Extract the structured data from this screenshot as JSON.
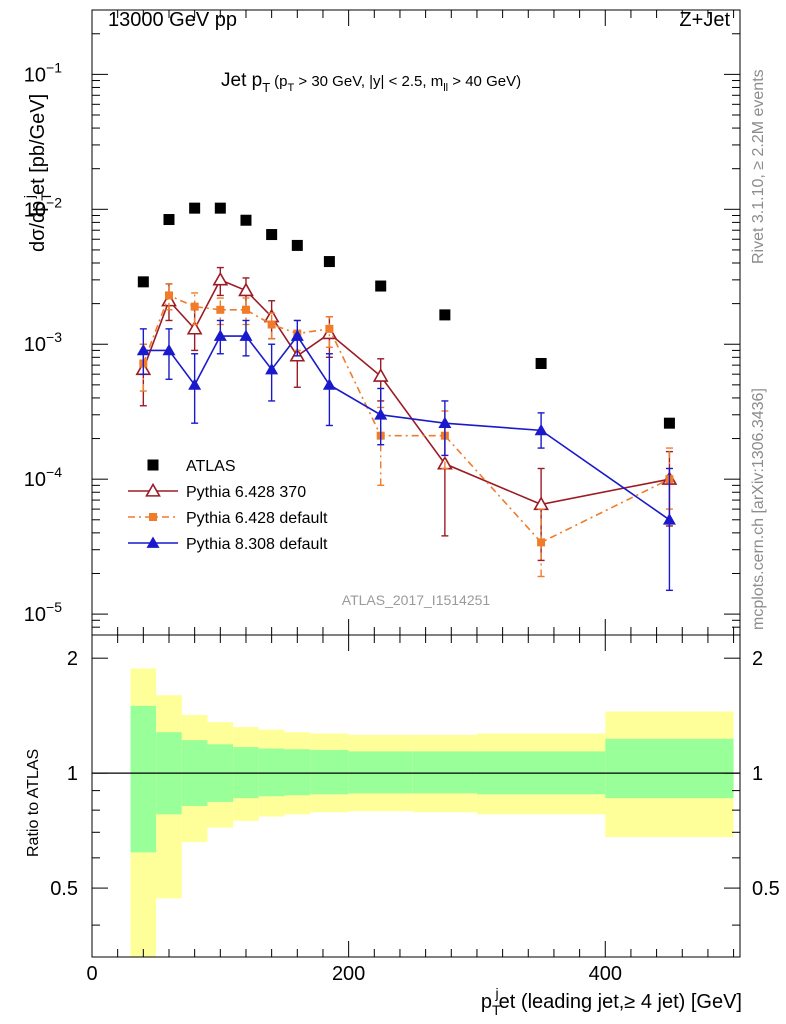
{
  "header": {
    "left": "13000 GeV pp",
    "right": "Z+Jet"
  },
  "side_labels": {
    "top": "Rivet 3.1.10, ≥ 2.2M events",
    "bottom": "mcplots.cern.ch [arXiv:1306.3436]"
  },
  "watermark": "ATLAS_2017_I1514251",
  "chart_data": [
    {
      "type": "scatter",
      "panel": "main",
      "title": {
        "main": "Jet p",
        "main_sub": "T",
        "cut_open": "(p",
        "cut_sub": "T",
        "cut_mid": " > 30 GeV, |y| < 2.5, m",
        "cut_sub2": "ll",
        "cut_close": " > 40 GeV)"
      },
      "ylabel": {
        "a": "dσ/dp",
        "sub": "T",
        "sup": "j",
        "b": "et [pb/GeV]"
      },
      "yscale": "log",
      "xlim": [
        0,
        505
      ],
      "ylim": [
        7e-06,
        0.3
      ],
      "yticks": [
        {
          "value": 0.1,
          "base": "10",
          "exp": "−1"
        },
        {
          "value": 0.01,
          "base": "10",
          "exp": "−2"
        },
        {
          "value": 0.001,
          "base": "10",
          "exp": "−3"
        },
        {
          "value": 0.0001,
          "base": "10",
          "exp": "−4"
        },
        {
          "value": 1e-05,
          "base": "10",
          "exp": "−5"
        }
      ],
      "legend_position": "bottom-left",
      "series": [
        {
          "name": "ATLAS",
          "color": "#000000",
          "marker": "square",
          "x": [
            40,
            60,
            80,
            100,
            120,
            140,
            160,
            185,
            225,
            275,
            350,
            450
          ],
          "y": [
            0.0029,
            0.0084,
            0.0102,
            0.0102,
            0.0083,
            0.0065,
            0.0054,
            0.0041,
            0.0027,
            0.00165,
            0.00072,
            0.00026
          ]
        },
        {
          "name": "Pythia 6.428 370",
          "color": "#9b1c25",
          "marker": "open-triangle",
          "dash": "",
          "x": [
            40,
            60,
            80,
            100,
            120,
            140,
            160,
            185,
            225,
            275,
            350,
            450
          ],
          "y": [
            0.00065,
            0.0021,
            0.0013,
            0.003,
            0.0025,
            0.0016,
            0.00082,
            0.0012,
            0.00058,
            0.00013,
            6.5e-05,
            0.0001
          ],
          "err_lo": [
            0.00035,
            0.0015,
            0.0009,
            0.0023,
            0.0019,
            0.0011,
            0.00048,
            0.0008,
            0.00038,
            3.8e-05,
            2.5e-05,
            4.5e-05
          ],
          "err_hi": [
            0.001,
            0.0028,
            0.0018,
            0.0037,
            0.0031,
            0.0021,
            0.0012,
            0.0016,
            0.00078,
            0.00025,
            0.00012,
            0.00016
          ]
        },
        {
          "name": "Pythia 6.428 default",
          "color": "#f07c2a",
          "marker": "square-small",
          "dash": "7,4,2,4",
          "x": [
            40,
            60,
            80,
            100,
            120,
            140,
            160,
            185,
            225,
            275,
            350,
            450
          ],
          "y": [
            0.00072,
            0.0023,
            0.0019,
            0.0018,
            0.0018,
            0.0014,
            0.0012,
            0.0013,
            0.00021,
            0.00021,
            3.4e-05,
            0.0001
          ],
          "err_lo": [
            0.00045,
            0.0018,
            0.0014,
            0.0014,
            0.0014,
            0.0011,
            0.0009,
            0.00095,
            9e-05,
            0.00012,
            1.9e-05,
            6e-05
          ],
          "err_hi": [
            0.001,
            0.0028,
            0.0024,
            0.0022,
            0.0022,
            0.0017,
            0.0015,
            0.0016,
            0.00034,
            0.00032,
            6e-05,
            0.00017
          ]
        },
        {
          "name": "Pythia 8.308 default",
          "color": "#1a1acc",
          "marker": "triangle",
          "dash": "",
          "x": [
            40,
            60,
            80,
            100,
            120,
            140,
            160,
            185,
            225,
            275,
            350,
            450
          ],
          "y": [
            0.0009,
            0.0009,
            0.0005,
            0.00115,
            0.00115,
            0.00065,
            0.00115,
            0.0005,
            0.0003,
            0.00026,
            0.00023,
            5e-05
          ],
          "err_lo": [
            0.0006,
            0.00055,
            0.00026,
            0.00085,
            0.00082,
            0.00038,
            0.00082,
            0.00025,
            0.00018,
            0.00015,
            0.00017,
            1.5e-05
          ],
          "err_hi": [
            0.0013,
            0.0013,
            0.00085,
            0.0015,
            0.0015,
            0.001,
            0.0015,
            0.00085,
            0.00047,
            0.00038,
            0.00031,
            0.00012
          ]
        }
      ]
    },
    {
      "type": "area",
      "panel": "ratio",
      "ylabel": "Ratio to ATLAS",
      "xlabel": {
        "a": "p",
        "sub": "T",
        "sup": "j",
        "b": "et (leading jet,≥ 4 jet) [GeV]"
      },
      "xlim": [
        0,
        505
      ],
      "ylim": [
        0.33,
        2.3
      ],
      "xticks": [
        "0",
        "200",
        "400"
      ],
      "yticks": [
        "0.5",
        "1",
        "2"
      ],
      "reference_line": 1,
      "bins": [
        {
          "x0": 30,
          "x1": 50,
          "g_lo": 0.62,
          "g_hi": 1.5,
          "y_lo": 0.3,
          "y_hi": 1.88
        },
        {
          "x0": 50,
          "x1": 70,
          "g_lo": 0.78,
          "g_hi": 1.28,
          "y_lo": 0.47,
          "y_hi": 1.6
        },
        {
          "x0": 70,
          "x1": 90,
          "g_lo": 0.82,
          "g_hi": 1.22,
          "y_lo": 0.66,
          "y_hi": 1.42
        },
        {
          "x0": 90,
          "x1": 110,
          "g_lo": 0.84,
          "g_hi": 1.19,
          "y_lo": 0.72,
          "y_hi": 1.36
        },
        {
          "x0": 110,
          "x1": 130,
          "g_lo": 0.86,
          "g_hi": 1.17,
          "y_lo": 0.75,
          "y_hi": 1.32
        },
        {
          "x0": 130,
          "x1": 150,
          "g_lo": 0.87,
          "g_hi": 1.16,
          "y_lo": 0.77,
          "y_hi": 1.3
        },
        {
          "x0": 150,
          "x1": 170,
          "g_lo": 0.875,
          "g_hi": 1.155,
          "y_lo": 0.78,
          "y_hi": 1.28
        },
        {
          "x0": 170,
          "x1": 200,
          "g_lo": 0.88,
          "g_hi": 1.15,
          "y_lo": 0.79,
          "y_hi": 1.27
        },
        {
          "x0": 200,
          "x1": 250,
          "g_lo": 0.885,
          "g_hi": 1.14,
          "y_lo": 0.795,
          "y_hi": 1.26
        },
        {
          "x0": 250,
          "x1": 300,
          "g_lo": 0.885,
          "g_hi": 1.14,
          "y_lo": 0.79,
          "y_hi": 1.26
        },
        {
          "x0": 300,
          "x1": 400,
          "g_lo": 0.88,
          "g_hi": 1.14,
          "y_lo": 0.78,
          "y_hi": 1.27
        },
        {
          "x0": 400,
          "x1": 500,
          "g_lo": 0.86,
          "g_hi": 1.23,
          "y_lo": 0.68,
          "y_hi": 1.45
        }
      ],
      "band_colors": {
        "inner": "#99ff99",
        "outer": "#ffff99"
      }
    }
  ]
}
